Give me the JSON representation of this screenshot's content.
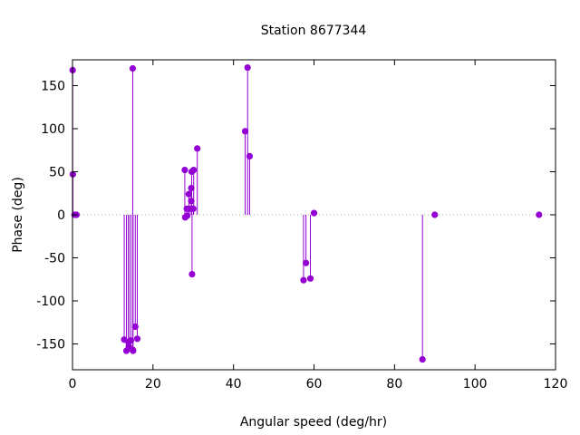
{
  "chart_data": {
    "type": "scatter",
    "title": "Station 8677344",
    "xlabel": "Angular speed (deg/hr)",
    "ylabel": "Phase (deg)",
    "xlim": [
      0,
      120
    ],
    "ylim": [
      -180,
      180
    ],
    "xticks": [
      0,
      20,
      40,
      60,
      80,
      100,
      120
    ],
    "yticks": [
      -150,
      -100,
      -50,
      0,
      50,
      100,
      150
    ],
    "grid": false,
    "legend": "none",
    "style": "impulses-with-points",
    "color": "#9400d3",
    "zero_line": "dotted",
    "points": [
      {
        "x": 0.04,
        "y": 168
      },
      {
        "x": 0.08,
        "y": 47
      },
      {
        "x": 0.5,
        "y": 0
      },
      {
        "x": 1.0,
        "y": 0
      },
      {
        "x": 12.85,
        "y": -145
      },
      {
        "x": 13.4,
        "y": -158
      },
      {
        "x": 13.9,
        "y": -148
      },
      {
        "x": 14.0,
        "y": -153
      },
      {
        "x": 14.5,
        "y": -146
      },
      {
        "x": 14.96,
        "y": 170
      },
      {
        "x": 15.0,
        "y": -157
      },
      {
        "x": 15.04,
        "y": -158
      },
      {
        "x": 15.6,
        "y": -130
      },
      {
        "x": 16.1,
        "y": -144
      },
      {
        "x": 27.9,
        "y": 52
      },
      {
        "x": 28.0,
        "y": -3
      },
      {
        "x": 28.4,
        "y": 7
      },
      {
        "x": 28.5,
        "y": -1
      },
      {
        "x": 28.9,
        "y": 24
      },
      {
        "x": 29.0,
        "y": 7
      },
      {
        "x": 29.5,
        "y": 16
      },
      {
        "x": 29.5,
        "y": 31
      },
      {
        "x": 29.6,
        "y": 50
      },
      {
        "x": 29.7,
        "y": -69
      },
      {
        "x": 30.0,
        "y": 7
      },
      {
        "x": 30.1,
        "y": 52
      },
      {
        "x": 31.0,
        "y": 77
      },
      {
        "x": 42.9,
        "y": 97
      },
      {
        "x": 43.5,
        "y": 171
      },
      {
        "x": 44.0,
        "y": 68
      },
      {
        "x": 57.4,
        "y": -76
      },
      {
        "x": 58.0,
        "y": -56
      },
      {
        "x": 59.1,
        "y": -74
      },
      {
        "x": 60.0,
        "y": 2
      },
      {
        "x": 86.95,
        "y": -168
      },
      {
        "x": 90.0,
        "y": 0
      },
      {
        "x": 115.9,
        "y": 0
      }
    ]
  }
}
